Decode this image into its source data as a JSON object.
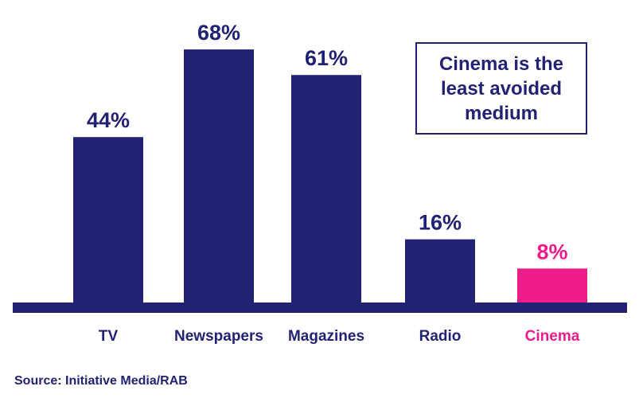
{
  "chart_data": {
    "type": "bar",
    "categories": [
      "TV",
      "Newspapers",
      "Magazines",
      "Radio",
      "Cinema"
    ],
    "values": [
      44,
      68,
      61,
      16,
      8
    ],
    "value_labels": [
      "44%",
      "68%",
      "61%",
      "16%",
      "8%"
    ],
    "ylim": [
      0,
      75
    ],
    "grid": false,
    "highlight_category": "Cinema",
    "colors": {
      "bar": "#222274",
      "highlight": "#ee1c8a",
      "axis": "#222274"
    }
  },
  "annotation": "Cinema is the least avoided medium",
  "source": "Source: Initiative Media/RAB"
}
